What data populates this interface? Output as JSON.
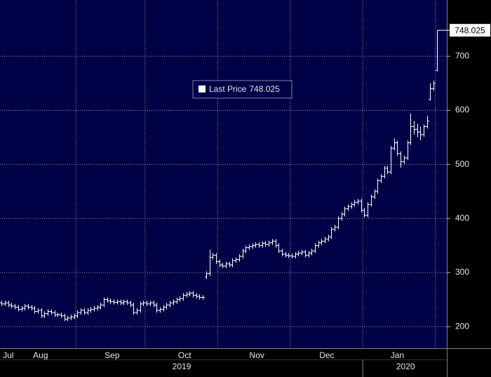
{
  "chart_data": {
    "type": "ohlc",
    "color": "#ffffff",
    "background": "#000046",
    "grid": true,
    "y_axis_side": "right",
    "xlim": [
      -0.5,
      135
    ],
    "ylim": [
      160,
      804
    ],
    "yticks": [
      200,
      300,
      400,
      500,
      600,
      700
    ],
    "xgrid": [
      22.5,
      43.5,
      65.5,
      87.5,
      109.5,
      131.5
    ],
    "xticks": [
      {
        "value": 2,
        "label": "Jul"
      },
      {
        "value": 11.8,
        "label": "Aug"
      },
      {
        "value": 33.5,
        "label": "Sep"
      },
      {
        "value": 55.5,
        "label": "Oct"
      },
      {
        "value": 77.4,
        "label": "Nov"
      },
      {
        "value": 98.6,
        "label": "Dec"
      },
      {
        "value": 120,
        "label": "Jan"
      }
    ],
    "xticks_secondary": [
      {
        "value": 54.6,
        "label": "2019"
      },
      {
        "value": 122.5,
        "label": "2020"
      }
    ],
    "x_dividers": [
      109.5
    ],
    "legend": {
      "label": "Last Price",
      "position": "center-top"
    },
    "open": [
      244,
      242,
      244,
      240,
      238,
      236,
      232,
      234,
      238,
      236,
      234,
      228,
      230,
      220,
      224,
      228,
      226,
      222,
      222,
      220,
      214,
      216,
      218,
      220,
      226,
      230,
      226,
      230,
      232,
      234,
      236,
      240,
      250,
      248,
      246,
      245,
      246,
      244,
      246,
      244,
      240,
      226,
      230,
      242,
      244,
      242,
      244,
      240,
      230,
      232,
      236,
      240,
      244,
      246,
      250,
      252,
      258,
      260,
      262,
      258,
      256,
      254,
      292,
      298,
      328,
      332,
      320,
      314,
      312,
      316,
      314,
      322,
      324,
      330,
      340,
      346,
      348,
      350,
      352,
      350,
      354,
      352,
      355,
      358,
      350,
      340,
      334,
      332,
      331,
      330,
      334,
      336,
      338,
      332,
      336,
      340,
      350,
      355,
      358,
      362,
      366,
      380,
      384,
      400,
      408,
      418,
      422,
      426,
      430,
      432,
      415,
      406,
      426,
      440,
      450,
      470,
      478,
      493,
      486,
      530,
      540,
      520,
      505,
      512,
      540,
      570,
      565,
      560,
      555,
      570,
      620,
      640,
      674
    ],
    "high": [
      248,
      248,
      248,
      244,
      242,
      240,
      238,
      242,
      242,
      240,
      238,
      234,
      234,
      228,
      232,
      232,
      230,
      226,
      226,
      224,
      220,
      222,
      224,
      230,
      234,
      234,
      234,
      236,
      238,
      240,
      244,
      254,
      254,
      252,
      250,
      250,
      250,
      250,
      250,
      248,
      244,
      234,
      246,
      248,
      248,
      248,
      248,
      244,
      236,
      240,
      244,
      248,
      250,
      254,
      256,
      262,
      264,
      266,
      266,
      262,
      260,
      258,
      302,
      342,
      336,
      336,
      324,
      318,
      320,
      320,
      326,
      328,
      334,
      344,
      350,
      352,
      354,
      356,
      356,
      358,
      358,
      359,
      362,
      362,
      354,
      344,
      338,
      336,
      335,
      338,
      340,
      342,
      342,
      340,
      344,
      354,
      359,
      362,
      366,
      370,
      384,
      388,
      404,
      412,
      422,
      426,
      430,
      434,
      436,
      436,
      419,
      430,
      444,
      454,
      474,
      482,
      497,
      497,
      534,
      548,
      544,
      524,
      516,
      544,
      594,
      580,
      575,
      570,
      574,
      590,
      650,
      655,
      748.025
    ],
    "low": [
      238,
      238,
      236,
      234,
      232,
      228,
      228,
      230,
      232,
      230,
      224,
      224,
      216,
      216,
      220,
      222,
      218,
      218,
      216,
      210,
      210,
      212,
      214,
      216,
      222,
      222,
      222,
      226,
      228,
      230,
      232,
      236,
      244,
      242,
      241,
      241,
      240,
      240,
      240,
      236,
      222,
      222,
      226,
      238,
      238,
      238,
      236,
      226,
      226,
      228,
      232,
      236,
      240,
      242,
      246,
      248,
      254,
      256,
      254,
      252,
      250,
      250,
      288,
      294,
      324,
      316,
      310,
      308,
      308,
      310,
      310,
      318,
      320,
      326,
      336,
      342,
      344,
      346,
      346,
      346,
      348,
      348,
      351,
      346,
      336,
      330,
      328,
      327,
      326,
      326,
      330,
      332,
      328,
      328,
      332,
      336,
      346,
      351,
      354,
      358,
      362,
      376,
      380,
      396,
      404,
      414,
      418,
      422,
      426,
      411,
      402,
      402,
      422,
      436,
      446,
      466,
      474,
      482,
      482,
      526,
      516,
      494,
      501,
      508,
      536,
      555,
      550,
      545,
      551,
      566,
      618,
      636,
      672
    ],
    "close": [
      242,
      244,
      240,
      238,
      236,
      232,
      234,
      238,
      236,
      234,
      228,
      230,
      220,
      224,
      228,
      226,
      222,
      222,
      220,
      214,
      216,
      218,
      220,
      226,
      230,
      226,
      230,
      232,
      234,
      236,
      240,
      250,
      248,
      246,
      245,
      246,
      244,
      246,
      244,
      240,
      226,
      230,
      242,
      244,
      242,
      244,
      240,
      230,
      232,
      236,
      240,
      244,
      246,
      250,
      252,
      258,
      260,
      262,
      258,
      256,
      254,
      254,
      298,
      328,
      332,
      320,
      314,
      312,
      316,
      314,
      322,
      324,
      330,
      340,
      346,
      348,
      350,
      352,
      350,
      354,
      352,
      355,
      358,
      350,
      340,
      334,
      332,
      331,
      330,
      334,
      336,
      338,
      332,
      336,
      340,
      350,
      355,
      358,
      362,
      366,
      380,
      384,
      400,
      408,
      418,
      422,
      426,
      430,
      432,
      415,
      406,
      426,
      440,
      450,
      470,
      478,
      493,
      486,
      530,
      540,
      520,
      505,
      512,
      540,
      570,
      565,
      560,
      555,
      570,
      580,
      640,
      650,
      748.025
    ]
  }
}
